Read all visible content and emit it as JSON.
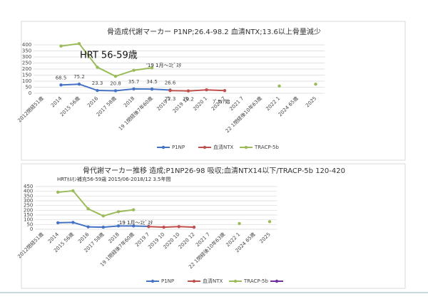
{
  "chart_data": [
    {
      "type": "line",
      "title": "骨造成代謝マーカー P1NP;26.4-98.2 血清NTX;13.6以上骨量減少",
      "categories": [
        "2012閉経51歳",
        "2014",
        "2015 56歳",
        "2016",
        "2017 58歳",
        "2018",
        "19 1閉経後7年60歳",
        "2019 7",
        "2019 10",
        "2020 1",
        "2020 7",
        "2021 7",
        "22 1閉経後10年63歳",
        "2022 1",
        "2024 65歳",
        "2025"
      ],
      "ylim": [
        0,
        400
      ],
      "yticks": [
        0,
        50,
        100,
        150,
        200,
        250,
        300,
        350,
        400
      ],
      "grid": true,
      "legend": "bottom",
      "series": [
        {
          "name": "P1NP",
          "color": "#4472c4",
          "values": [
            null,
            68.5,
            75.2,
            23.3,
            20.8,
            35.7,
            34.5,
            26.6,
            null,
            null,
            null,
            null,
            null,
            null,
            null,
            null
          ],
          "value_labels": [
            null,
            "68.5",
            "75.2",
            "23.3",
            "20.8",
            "35.7",
            "34.5",
            "26.6",
            null,
            null,
            null,
            null,
            null,
            null,
            null,
            null
          ]
        },
        {
          "name": "血清NTX",
          "color": "#c0504d",
          "values": [
            null,
            null,
            null,
            null,
            null,
            null,
            null,
            22.3,
            19.2,
            28,
            22,
            null,
            null,
            null,
            null,
            null
          ],
          "value_labels": [
            null,
            null,
            null,
            null,
            null,
            null,
            null,
            "22.3",
            "19.2",
            null,
            null,
            null,
            null,
            null,
            null,
            null
          ]
        },
        {
          "name": "TRACP-5b",
          "color": "#9bbb59",
          "values": [
            null,
            390,
            410,
            215,
            140,
            190,
            210,
            null,
            null,
            null,
            null,
            null,
            null,
            60,
            null,
            75
          ]
        }
      ],
      "annotations": [
        "HRT 56-59歳",
        "'19 1月～ｴﾋﾞｽﾀ",
        "ﾌﾟﾗﾘｱ始"
      ]
    },
    {
      "type": "line",
      "title": "骨代謝マーカー推移 造成;P1NP26-98 吸収;血清NTX14以下/TRACP-5b 120-420",
      "subtitle": "HRTﾎﾙﾓﾝ補充56-59歳 2015/06-2018/12 3.5年間",
      "categories": [
        "2012閉経51歳",
        "2014",
        "2015 56歳",
        "2016",
        "2017 58歳",
        "2018",
        "19 1閉経後7年60歳",
        "2019 7",
        "2019 10",
        "2020 10",
        "2020 12",
        "2021 7",
        "22 1閉経後10年63歳",
        "2022 1",
        "2024 65歳",
        "2025"
      ],
      "ylim": [
        0,
        450
      ],
      "yticks": [
        0,
        50,
        100,
        150,
        200,
        250,
        300,
        350,
        400,
        450
      ],
      "grid": true,
      "legend": "bottom",
      "series": [
        {
          "name": "P1NP",
          "color": "#4472c4",
          "values": [
            null,
            68,
            72,
            25,
            22,
            35,
            35,
            30,
            null,
            null,
            null,
            null,
            null,
            null,
            null,
            null
          ]
        },
        {
          "name": "血清NTX",
          "color": "#c0504d",
          "values": [
            null,
            null,
            null,
            null,
            null,
            null,
            null,
            28,
            22,
            28,
            22,
            null,
            null,
            null,
            null,
            null
          ]
        },
        {
          "name": "TRACP-5b",
          "color": "#9bbb59",
          "values": [
            null,
            390,
            405,
            215,
            140,
            185,
            205,
            null,
            null,
            null,
            null,
            null,
            null,
            60,
            null,
            80
          ]
        },
        {
          "color": "#7030a0",
          "values": [
            null,
            null,
            null,
            null,
            null,
            null,
            null,
            null,
            null,
            null,
            null,
            null,
            null,
            null,
            null,
            null
          ]
        }
      ],
      "annotations": [
        "'19 1月～ｴﾋﾞｽﾀ"
      ]
    }
  ]
}
